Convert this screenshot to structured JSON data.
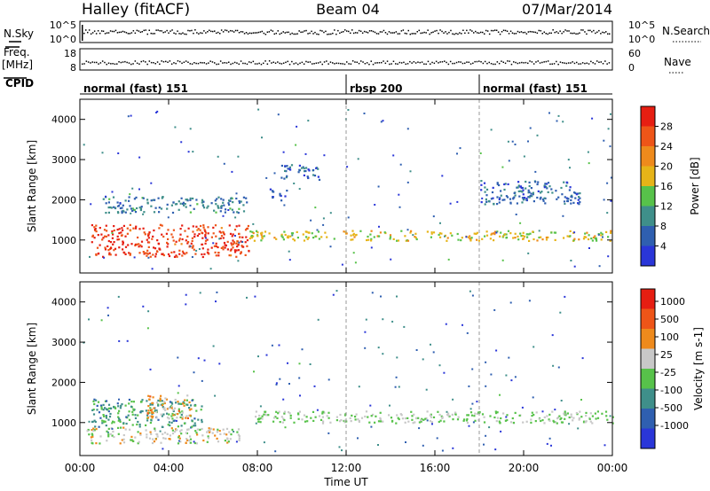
{
  "header": {
    "station": "Halley (fitACF)",
    "beam": "Beam 04",
    "date": "07/Mar/2014"
  },
  "noise_panel": {
    "left_label": "N.Sky",
    "right_label": "N.Search",
    "left_ticks": [
      "10^5",
      "10^0"
    ],
    "right_ticks": [
      "10^5",
      "10^0"
    ]
  },
  "freq_panel": {
    "left_label_1": "Freq.",
    "left_label_2": "[MHz]",
    "right_label": "Nave",
    "left_ticks": [
      "18",
      "8"
    ],
    "right_ticks": [
      "60",
      "0"
    ]
  },
  "cpid": {
    "label": "CPID",
    "modes": [
      {
        "name": "normal (fast) 151",
        "start_hour": 0
      },
      {
        "name": "rbsp 200",
        "start_hour": 12
      },
      {
        "name": "normal (fast) 151",
        "start_hour": 18
      }
    ]
  },
  "x_axis": {
    "title": "Time UT",
    "ticks": [
      "00:00",
      "04:00",
      "08:00",
      "12:00",
      "16:00",
      "20:00",
      "00:00"
    ]
  },
  "power_panel": {
    "ylabel": "Slant Range [km]",
    "y_ticks": [
      "1000",
      "2000",
      "3000",
      "4000"
    ],
    "colorbar_label": "Power [dB]",
    "colorbar_ticks": [
      "4",
      "8",
      "12",
      "16",
      "20",
      "24",
      "28"
    ],
    "colors": [
      "#2a36d8",
      "#2f5fb0",
      "#3f8f8a",
      "#57c24a",
      "#e6b418",
      "#ee8a1c",
      "#ee5518",
      "#e61e12"
    ]
  },
  "velocity_panel": {
    "ylabel": "Slant Range [km]",
    "y_ticks": [
      "1000",
      "2000",
      "3000",
      "4000"
    ],
    "colorbar_label": "Velocity [m s-1]",
    "colorbar_ticks": [
      "1000",
      "500",
      "100",
      "25",
      "-25",
      "-100",
      "-500",
      "-1000"
    ],
    "colors": [
      "#2a36d8",
      "#2f5fb0",
      "#3f8f8a",
      "#57c24a",
      "#c8c8c8",
      "#ee8a1c",
      "#ee5518",
      "#e61e12"
    ]
  },
  "chart_data": [
    {
      "type": "heatmap",
      "title": "Power",
      "xlabel": "Time UT",
      "ylabel": "Slant Range [km]",
      "xlim": [
        0,
        24
      ],
      "ylim": [
        180,
        4500
      ],
      "colorbar": {
        "label": "Power [dB]",
        "range": [
          0,
          30
        ]
      },
      "regions": [
        {
          "t": [
            0.5,
            7.6
          ],
          "range_km": [
            600,
            1400
          ],
          "power_db": 26
        },
        {
          "t": [
            7.6,
            24
          ],
          "range_km": [
            1000,
            1250
          ],
          "power_db": 16
        },
        {
          "t": [
            1.0,
            7.5
          ],
          "range_km": [
            1700,
            2100
          ],
          "power_db": 8
        },
        {
          "t": [
            8.5,
            9.3
          ],
          "range_km": [
            2000,
            2300
          ],
          "power_db": 6
        },
        {
          "t": [
            9.0,
            10.8
          ],
          "range_km": [
            2500,
            2900
          ],
          "power_db": 6
        },
        {
          "t": [
            18.0,
            22.5
          ],
          "range_km": [
            1900,
            2500
          ],
          "power_db": 6
        }
      ]
    },
    {
      "type": "heatmap",
      "title": "Velocity",
      "xlabel": "Time UT",
      "ylabel": "Slant Range [km]",
      "xlim": [
        0,
        24
      ],
      "ylim": [
        180,
        4500
      ],
      "colorbar": {
        "label": "Velocity [m s-1]",
        "range": [
          -1000,
          1000
        ]
      },
      "regions": [
        {
          "t": [
            0.3,
            7.2
          ],
          "range_km": [
            500,
            900
          ],
          "velocity_ms": 100
        },
        {
          "t": [
            0.5,
            5.5
          ],
          "range_km": [
            900,
            1600
          ],
          "velocity_ms": -300
        },
        {
          "t": [
            3.0,
            5.0
          ],
          "range_km": [
            1100,
            1700
          ],
          "velocity_ms": 300
        },
        {
          "t": [
            7.6,
            24
          ],
          "range_km": [
            1000,
            1300
          ],
          "velocity_ms": 0
        }
      ]
    }
  ]
}
